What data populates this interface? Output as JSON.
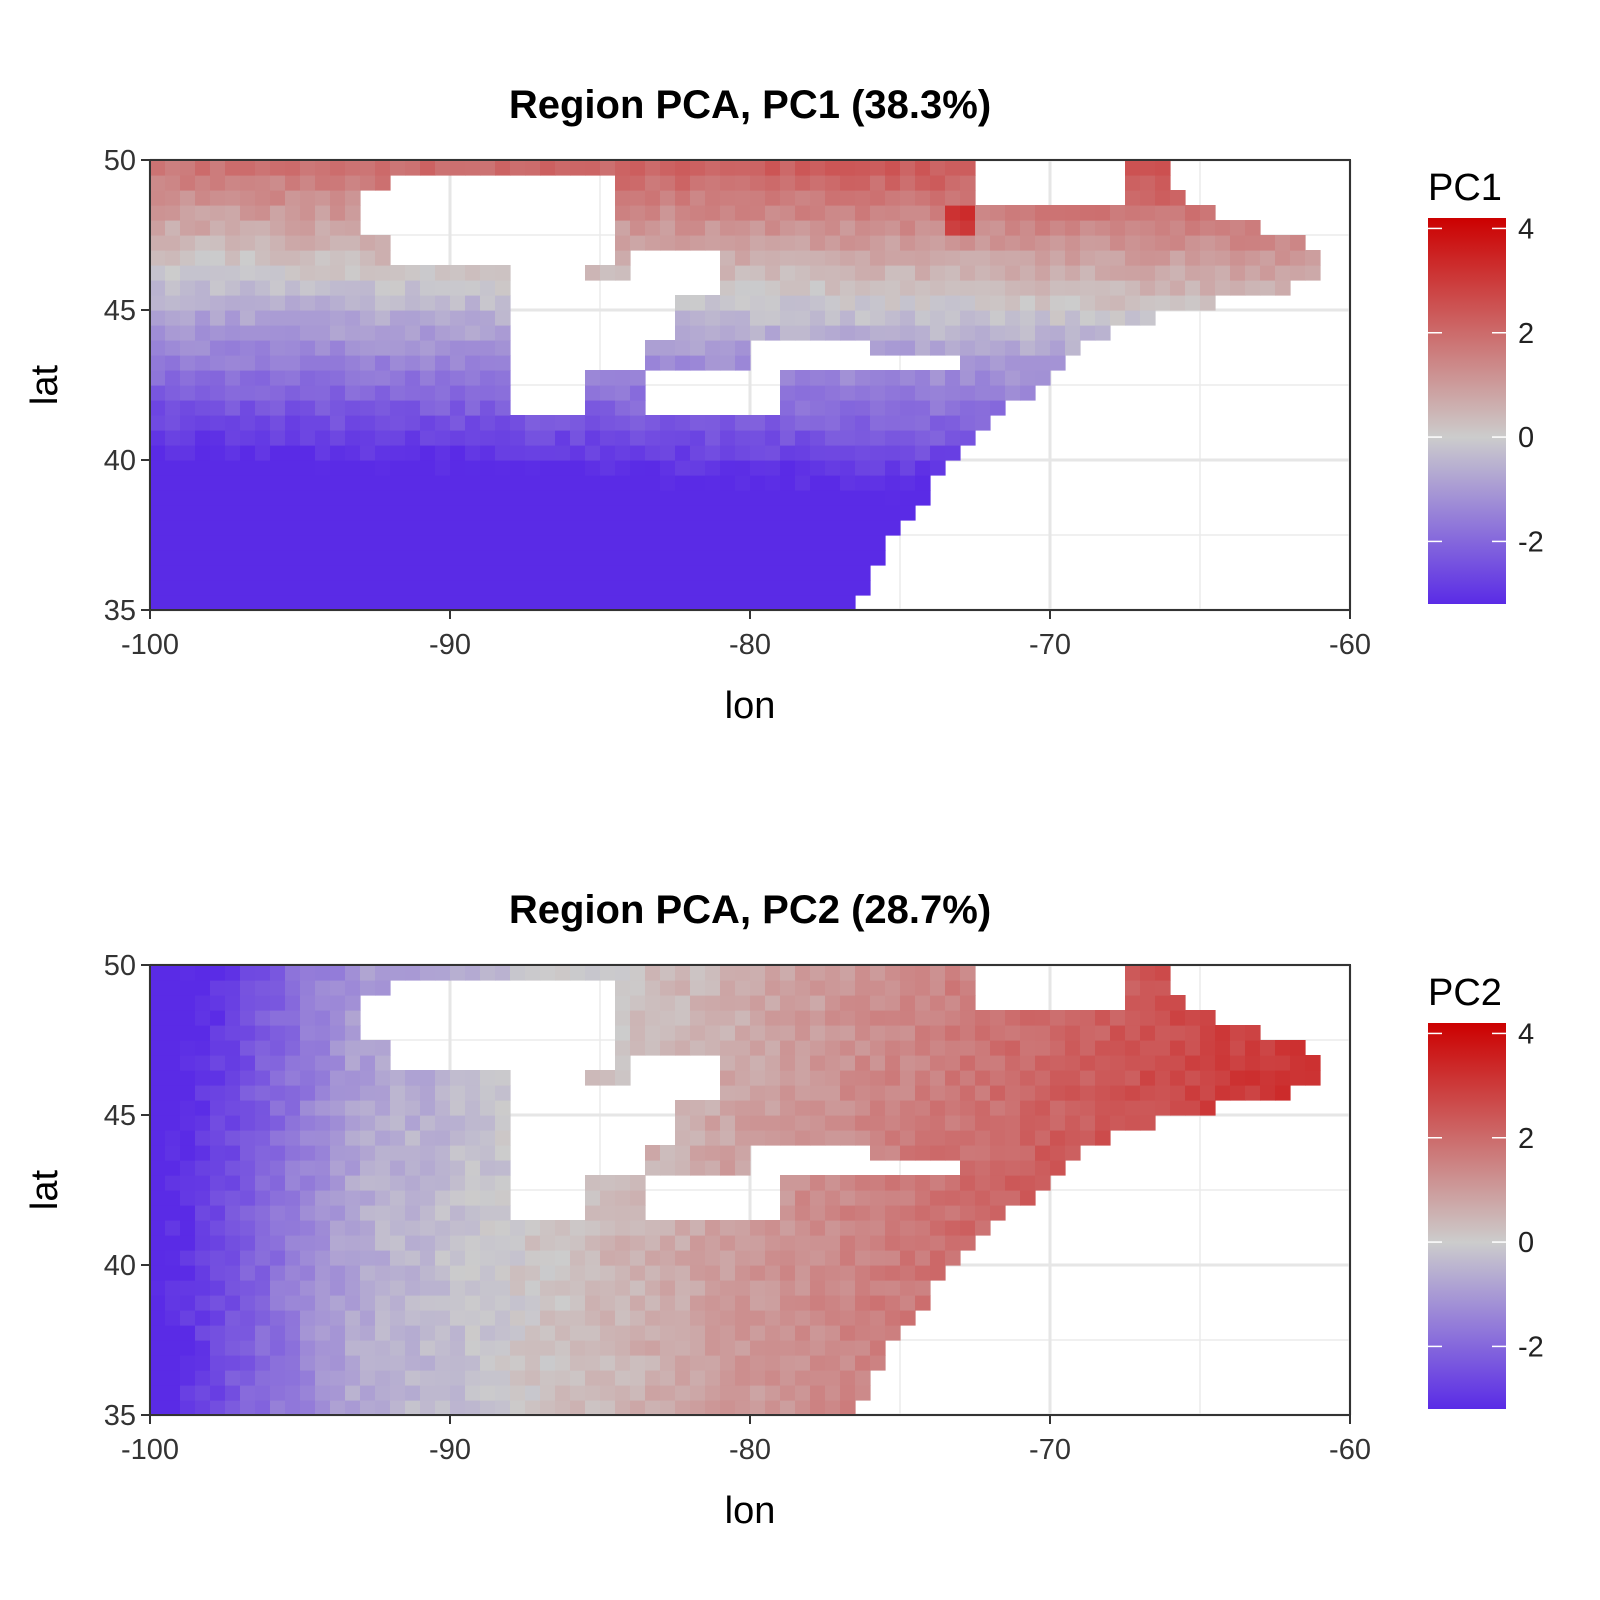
{
  "colors": {
    "low": "#5a2be6",
    "mid": "#cccccc",
    "high": "#cc0000",
    "grid": "#ebebeb",
    "panel_border": "#333333",
    "missing": "#ffffff"
  },
  "chart_data": [
    {
      "type": "heatmap",
      "title": "Region PCA, PC1 (38.3%)",
      "xlabel": "lon",
      "ylabel": "lat",
      "xlim": [
        -100,
        -60
      ],
      "ylim": [
        35,
        50
      ],
      "xticks": [
        -100,
        -90,
        -80,
        -70,
        -60
      ],
      "xtick_labels": [
        "-100",
        "-90",
        "-80",
        "-70",
        "-60"
      ],
      "yticks": [
        35,
        40,
        45,
        50
      ],
      "ytick_labels": [
        "35",
        "40",
        "45",
        "50"
      ],
      "grid": true,
      "legend": {
        "title": "PC1",
        "placement": "right",
        "ticks": [
          4,
          2,
          0,
          -2
        ],
        "tick_labels": [
          "4",
          "2",
          "0",
          "-2"
        ],
        "range": [
          -3.2,
          4.2
        ]
      },
      "cell_size_deg": 0.5,
      "field": {
        "description_of_pattern": "positive in north (up to ~4 near -73,48), negative in south (down to ~-3 near -97,35)",
        "value_range": [
          -3,
          4
        ]
      }
    },
    {
      "type": "heatmap",
      "title": "Region PCA, PC2 (28.7%)",
      "xlabel": "lon",
      "ylabel": "lat",
      "xlim": [
        -100,
        -60
      ],
      "ylim": [
        35,
        50
      ],
      "xticks": [
        -100,
        -90,
        -80,
        -70,
        -60
      ],
      "xtick_labels": [
        "-100",
        "-90",
        "-80",
        "-70",
        "-60"
      ],
      "yticks": [
        35,
        40,
        45,
        50
      ],
      "ytick_labels": [
        "35",
        "40",
        "45",
        "50"
      ],
      "grid": true,
      "legend": {
        "title": "PC2",
        "placement": "right",
        "ticks": [
          4,
          2,
          0,
          -2
        ],
        "tick_labels": [
          "4",
          "2",
          "0",
          "-2"
        ],
        "range": [
          -3.2,
          4.2
        ]
      },
      "cell_size_deg": 0.5,
      "field": {
        "description_of_pattern": "negative in west (down to ~-3 near -99,46), positive in east/south-east (up to ~4 near -76.5,35 and -71,44)",
        "value_range": [
          -3,
          4
        ]
      }
    }
  ]
}
